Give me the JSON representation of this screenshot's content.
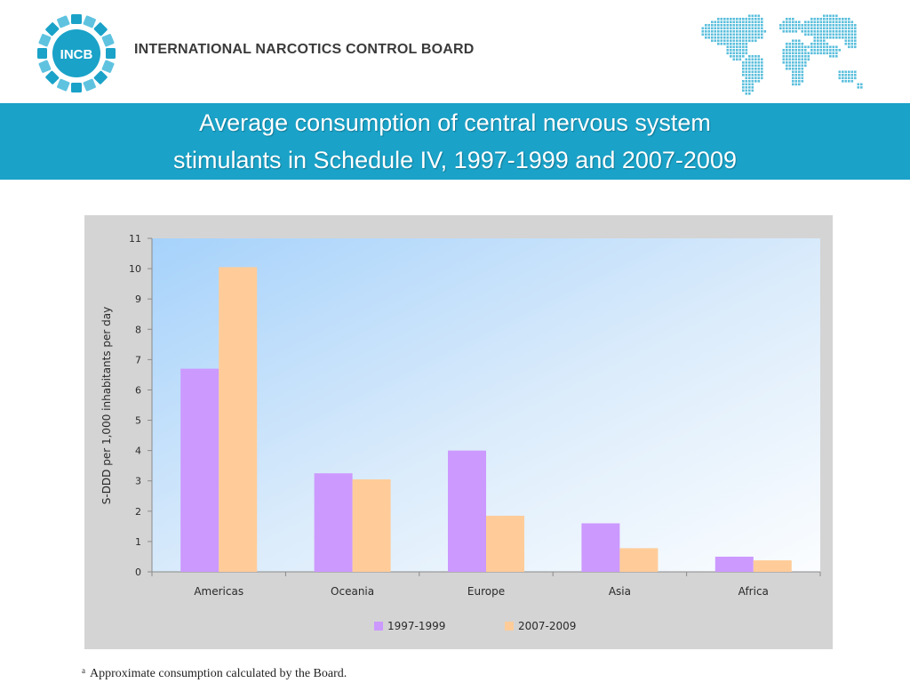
{
  "header": {
    "logo_text": "INCB",
    "organization": "INTERNATIONAL NARCOTICS CONTROL BOARD"
  },
  "title": {
    "line1": "Average consumption of central nervous system",
    "line2": "stimulants in Schedule IV, 1997-1999 and 2007-2009"
  },
  "colors": {
    "brand_blue": "#1aa2c8",
    "series_1": "#cc99ff",
    "series_2": "#ffcc99"
  },
  "chart_data": {
    "type": "bar",
    "ylabel": "S-DDD per 1,000 inhabitants per day",
    "xlabel": "",
    "ylim": [
      0,
      11
    ],
    "yticks": [
      0,
      1,
      2,
      3,
      4,
      5,
      6,
      7,
      8,
      9,
      10,
      11
    ],
    "categories": [
      "Americas",
      "Oceania",
      "Europe",
      "Asia",
      "Africa"
    ],
    "series": [
      {
        "name": "1997-1999",
        "color": "#cc99ff",
        "values": [
          6.7,
          3.25,
          4.0,
          1.6,
          0.5
        ]
      },
      {
        "name": "2007-2009",
        "color": "#ffcc99",
        "values": [
          10.05,
          3.05,
          1.85,
          0.78,
          0.38
        ]
      }
    ],
    "legend_position": "bottom",
    "grid": false
  },
  "footnote": {
    "marker": "a",
    "text": "Approximate consumption calculated by the Board."
  }
}
